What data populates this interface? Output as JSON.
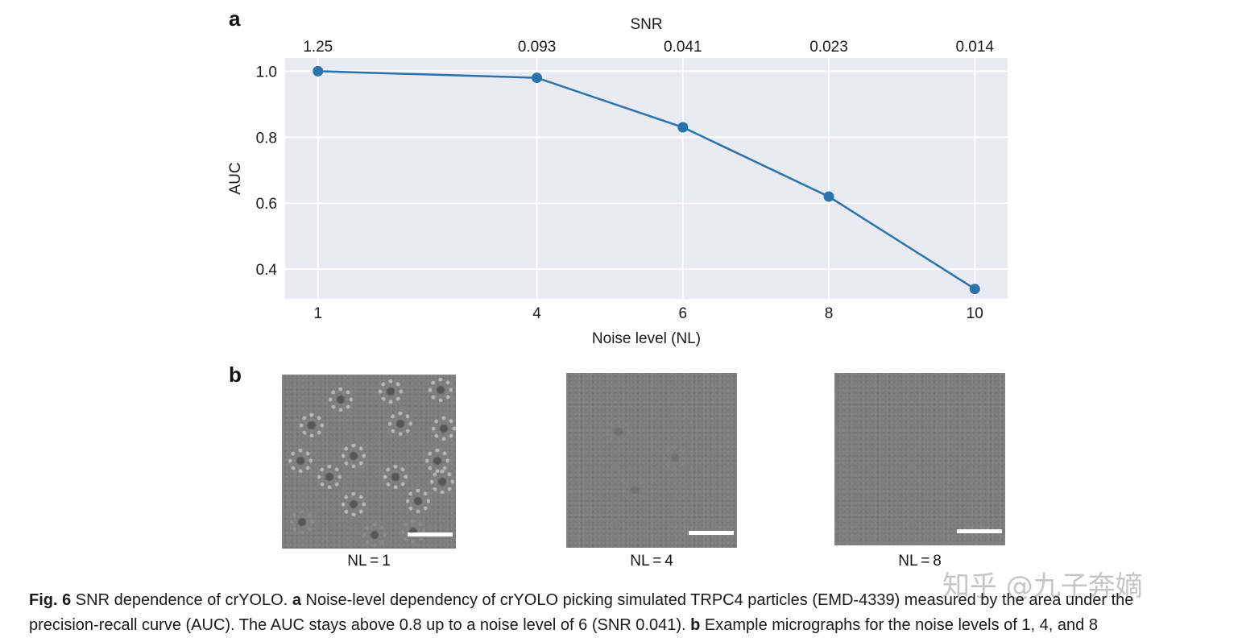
{
  "panels": {
    "a": "a",
    "b": "b"
  },
  "chart_data": {
    "type": "line",
    "title": "",
    "xlabel": "Noise level (NL)",
    "ylabel": "AUC",
    "top_axis_label": "SNR",
    "x": [
      1,
      4,
      6,
      8,
      10
    ],
    "x_tick_labels": [
      "1",
      "4",
      "6",
      "8",
      "10"
    ],
    "top_tick_labels": [
      "1.25",
      "0.093",
      "0.041",
      "0.023",
      "0.014"
    ],
    "y_ticks": [
      0.4,
      0.6,
      0.8,
      1.0
    ],
    "y_tick_labels": [
      "0.4",
      "0.6",
      "0.8",
      "1.0"
    ],
    "ylim": [
      0.31,
      1.04
    ],
    "grid": true,
    "series": [
      {
        "values": [
          1.0,
          0.98,
          0.83,
          0.62,
          0.34
        ],
        "color": "#2a74ad"
      }
    ]
  },
  "micrographs": [
    {
      "label": "NL = 1"
    },
    {
      "label": "NL = 4"
    },
    {
      "label": "NL = 8"
    }
  ],
  "caption": {
    "fig_label": "Fig. 6",
    "line1_a": " SNR dependence of crYOLO. ",
    "a": "a",
    "line1_b": " Noise-level dependency of crYOLO picking simulated TRPC4 particles (EMD-4339) measured by the area under the",
    "line2_a": "precision-recall curve (AUC). The AUC stays above 0.8 up to a noise level of 6 (SNR 0.041). ",
    "b": "b",
    "line2_b": " Example micrographs for the noise levels of 1, 4, and 8"
  },
  "watermark": "知乎 @九子奔嫡",
  "colors": {
    "plot_bg": "#e9eaf2",
    "line": "#2a74ad"
  }
}
